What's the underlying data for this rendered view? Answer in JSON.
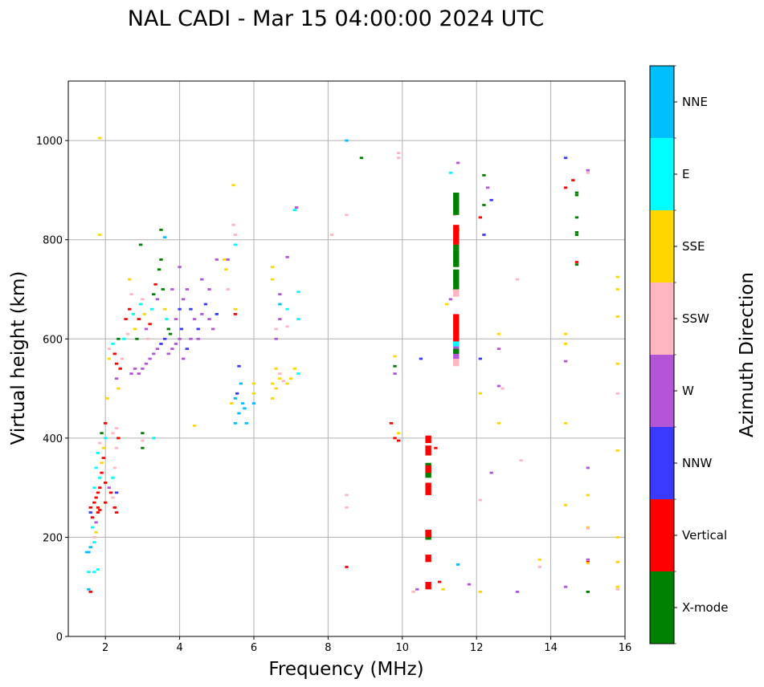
{
  "chart_data": {
    "type": "scatter",
    "title": "NAL CADI - Mar 15 04:00:00 2024 UTC",
    "xlabel": "Frequency (MHz)",
    "ylabel": "Virtual height (km)",
    "xlim": [
      1,
      16
    ],
    "ylim": [
      0,
      1120
    ],
    "xticks": [
      2,
      4,
      6,
      8,
      10,
      12,
      14,
      16
    ],
    "yticks": [
      0,
      200,
      400,
      600,
      800,
      1000
    ],
    "grid": true,
    "colorbar": {
      "label": "Azimuth Direction",
      "categories": [
        {
          "name": "X-mode",
          "color": "#008000"
        },
        {
          "name": "Vertical",
          "color": "#ff0000"
        },
        {
          "name": "NNW",
          "color": "#3a3aff"
        },
        {
          "name": "W",
          "color": "#b455d8"
        },
        {
          "name": "SSW",
          "color": "#ffb6c1"
        },
        {
          "name": "SSE",
          "color": "#ffd700"
        },
        {
          "name": "E",
          "color": "#00ffff"
        },
        {
          "name": "NNE",
          "color": "#00bfff"
        }
      ]
    },
    "points": [
      [
        1.85,
        1005,
        5
      ],
      [
        1.85,
        810,
        5
      ],
      [
        1.5,
        170,
        7
      ],
      [
        1.55,
        170,
        7
      ],
      [
        1.6,
        180,
        7
      ],
      [
        1.55,
        130,
        6
      ],
      [
        1.7,
        130,
        6
      ],
      [
        1.8,
        135,
        6
      ],
      [
        1.55,
        95,
        7
      ],
      [
        1.6,
        90,
        1
      ],
      [
        1.6,
        260,
        1
      ],
      [
        1.6,
        250,
        2
      ],
      [
        1.65,
        240,
        1
      ],
      [
        1.7,
        270,
        1
      ],
      [
        1.65,
        220,
        6
      ],
      [
        1.7,
        200,
        4
      ],
      [
        1.75,
        210,
        5
      ],
      [
        1.75,
        280,
        1
      ],
      [
        1.8,
        290,
        1
      ],
      [
        1.8,
        260,
        1
      ],
      [
        1.85,
        300,
        1
      ],
      [
        1.85,
        320,
        6
      ],
      [
        1.9,
        330,
        1
      ],
      [
        1.9,
        350,
        5
      ],
      [
        1.95,
        360,
        1
      ],
      [
        1.95,
        380,
        5
      ],
      [
        2.0,
        400,
        6
      ],
      [
        2.0,
        430,
        1
      ],
      [
        1.9,
        410,
        0
      ],
      [
        2.0,
        310,
        1
      ],
      [
        2.0,
        270,
        1
      ],
      [
        1.85,
        255,
        1
      ],
      [
        1.8,
        250,
        1
      ],
      [
        1.75,
        230,
        3
      ],
      [
        1.7,
        190,
        6
      ],
      [
        1.7,
        300,
        6
      ],
      [
        1.75,
        340,
        6
      ],
      [
        1.8,
        370,
        6
      ],
      [
        1.85,
        390,
        4
      ],
      [
        2.05,
        480,
        5
      ],
      [
        2.1,
        300,
        3
      ],
      [
        2.15,
        290,
        1
      ],
      [
        2.2,
        280,
        4
      ],
      [
        2.25,
        260,
        1
      ],
      [
        2.3,
        250,
        1
      ],
      [
        2.3,
        290,
        2
      ],
      [
        2.2,
        320,
        6
      ],
      [
        2.25,
        340,
        4
      ],
      [
        2.3,
        380,
        4
      ],
      [
        2.35,
        400,
        1
      ],
      [
        2.2,
        410,
        4
      ],
      [
        2.3,
        420,
        4
      ],
      [
        2.1,
        560,
        5
      ],
      [
        2.1,
        580,
        4
      ],
      [
        2.2,
        590,
        6
      ],
      [
        2.25,
        570,
        1
      ],
      [
        2.3,
        550,
        1
      ],
      [
        2.35,
        600,
        0
      ],
      [
        2.3,
        520,
        3
      ],
      [
        2.35,
        500,
        5
      ],
      [
        2.4,
        540,
        1
      ],
      [
        2.45,
        560,
        4
      ],
      [
        2.5,
        600,
        6
      ],
      [
        2.55,
        640,
        1
      ],
      [
        2.6,
        610,
        4
      ],
      [
        2.65,
        660,
        1
      ],
      [
        2.7,
        690,
        4
      ],
      [
        2.75,
        650,
        6
      ],
      [
        2.8,
        620,
        5
      ],
      [
        2.85,
        600,
        0
      ],
      [
        2.9,
        640,
        1
      ],
      [
        2.95,
        670,
        6
      ],
      [
        3.0,
        680,
        4
      ],
      [
        3.05,
        650,
        5
      ],
      [
        3.1,
        620,
        3
      ],
      [
        3.15,
        600,
        4
      ],
      [
        3.2,
        630,
        1
      ],
      [
        3.25,
        660,
        6
      ],
      [
        3.3,
        690,
        0
      ],
      [
        3.35,
        710,
        1
      ],
      [
        3.4,
        680,
        3
      ],
      [
        3.45,
        740,
        0
      ],
      [
        3.5,
        760,
        0
      ],
      [
        3.5,
        820,
        0
      ],
      [
        3.6,
        805,
        7
      ],
      [
        3.55,
        700,
        0
      ],
      [
        3.6,
        660,
        5
      ],
      [
        3.65,
        640,
        6
      ],
      [
        3.7,
        620,
        0
      ],
      [
        3.75,
        610,
        0
      ],
      [
        2.7,
        530,
        3
      ],
      [
        2.8,
        540,
        3
      ],
      [
        2.9,
        530,
        3
      ],
      [
        3.0,
        540,
        3
      ],
      [
        3.1,
        550,
        3
      ],
      [
        3.2,
        560,
        3
      ],
      [
        3.3,
        570,
        3
      ],
      [
        3.4,
        580,
        3
      ],
      [
        3.5,
        590,
        2
      ],
      [
        3.6,
        600,
        2
      ],
      [
        3.7,
        570,
        3
      ],
      [
        3.8,
        580,
        3
      ],
      [
        3.9,
        590,
        3
      ],
      [
        4.0,
        600,
        3
      ],
      [
        4.05,
        620,
        2
      ],
      [
        3.9,
        640,
        3
      ],
      [
        4.0,
        660,
        2
      ],
      [
        4.1,
        680,
        3
      ],
      [
        4.2,
        700,
        3
      ],
      [
        4.3,
        660,
        2
      ],
      [
        4.4,
        640,
        3
      ],
      [
        4.5,
        620,
        2
      ],
      [
        4.6,
        650,
        3
      ],
      [
        4.7,
        670,
        2
      ],
      [
        4.8,
        640,
        3
      ],
      [
        4.9,
        620,
        3
      ],
      [
        5.0,
        650,
        2
      ],
      [
        4.1,
        560,
        3
      ],
      [
        4.2,
        580,
        2
      ],
      [
        4.3,
        600,
        3
      ],
      [
        4.0,
        745,
        3
      ],
      [
        4.6,
        720,
        3
      ],
      [
        4.8,
        700,
        3
      ],
      [
        5.0,
        760,
        3
      ],
      [
        5.2,
        760,
        5
      ],
      [
        5.25,
        740,
        5
      ],
      [
        5.3,
        700,
        4
      ],
      [
        5.3,
        760,
        3
      ],
      [
        5.5,
        790,
        6
      ],
      [
        5.45,
        910,
        5
      ],
      [
        5.45,
        830,
        4
      ],
      [
        5.5,
        810,
        4
      ],
      [
        5.5,
        650,
        1
      ],
      [
        5.5,
        660,
        5
      ],
      [
        3.8,
        700,
        3
      ],
      [
        4.5,
        600,
        3
      ],
      [
        4.4,
        425,
        5
      ],
      [
        3.0,
        380,
        0
      ],
      [
        3.0,
        410,
        0
      ],
      [
        3.3,
        400,
        6
      ],
      [
        3.0,
        395,
        4
      ],
      [
        2.95,
        790,
        0
      ],
      [
        2.65,
        720,
        5
      ],
      [
        5.5,
        430,
        7
      ],
      [
        5.6,
        450,
        7
      ],
      [
        5.7,
        470,
        7
      ],
      [
        5.55,
        490,
        2
      ],
      [
        5.65,
        510,
        7
      ],
      [
        5.75,
        460,
        7
      ],
      [
        5.6,
        545,
        2
      ],
      [
        5.4,
        470,
        5
      ],
      [
        5.5,
        480,
        7
      ],
      [
        5.8,
        430,
        7
      ],
      [
        6.0,
        470,
        7
      ],
      [
        6.0,
        490,
        5
      ],
      [
        6.0,
        510,
        5
      ],
      [
        6.5,
        510,
        5
      ],
      [
        6.6,
        500,
        5
      ],
      [
        6.7,
        520,
        5
      ],
      [
        6.8,
        515,
        4
      ],
      [
        6.9,
        510,
        5
      ],
      [
        6.6,
        540,
        5
      ],
      [
        6.7,
        530,
        4
      ],
      [
        7.1,
        540,
        5
      ],
      [
        7.2,
        530,
        6
      ],
      [
        7.0,
        520,
        5
      ],
      [
        6.5,
        480,
        5
      ],
      [
        6.6,
        620,
        4
      ],
      [
        6.7,
        640,
        3
      ],
      [
        6.9,
        625,
        4
      ],
      [
        6.7,
        690,
        3
      ],
      [
        6.7,
        670,
        7
      ],
      [
        6.5,
        720,
        5
      ],
      [
        6.5,
        745,
        5
      ],
      [
        6.9,
        765,
        3
      ],
      [
        7.2,
        695,
        6
      ],
      [
        7.2,
        640,
        6
      ],
      [
        6.9,
        660,
        6
      ],
      [
        6.6,
        600,
        3
      ],
      [
        7.1,
        860,
        6
      ],
      [
        7.15,
        865,
        3
      ],
      [
        8.5,
        1000,
        7
      ],
      [
        8.9,
        965,
        0
      ],
      [
        8.5,
        850,
        4
      ],
      [
        8.1,
        810,
        4
      ],
      [
        9.9,
        975,
        4
      ],
      [
        9.9,
        965,
        4
      ],
      [
        9.8,
        565,
        5
      ],
      [
        9.8,
        545,
        0
      ],
      [
        9.8,
        530,
        3
      ],
      [
        9.7,
        430,
        1
      ],
      [
        9.9,
        410,
        5
      ],
      [
        9.8,
        400,
        1
      ],
      [
        9.9,
        395,
        1
      ],
      [
        10.5,
        560,
        2
      ],
      [
        10.9,
        380,
        1
      ],
      [
        11.3,
        935,
        6
      ],
      [
        11.5,
        955,
        3
      ],
      [
        11.5,
        820,
        5
      ],
      [
        11.4,
        850,
        4
      ],
      [
        11.3,
        680,
        3
      ],
      [
        11.2,
        670,
        5
      ],
      [
        11.4,
        700,
        4
      ],
      [
        11.0,
        110,
        1
      ],
      [
        10.4,
        95,
        3
      ],
      [
        10.3,
        90,
        4
      ],
      [
        11.1,
        95,
        5
      ],
      [
        11.5,
        145,
        7
      ],
      [
        11.8,
        105,
        3
      ],
      [
        12.1,
        560,
        2
      ],
      [
        12.1,
        490,
        5
      ],
      [
        12.3,
        905,
        3
      ],
      [
        12.4,
        880,
        2
      ],
      [
        12.2,
        930,
        0
      ],
      [
        12.2,
        870,
        0
      ],
      [
        12.1,
        845,
        1
      ],
      [
        12.2,
        810,
        2
      ],
      [
        12.6,
        610,
        5
      ],
      [
        12.6,
        580,
        3
      ],
      [
        12.6,
        505,
        3
      ],
      [
        12.7,
        500,
        4
      ],
      [
        12.6,
        430,
        5
      ],
      [
        12.4,
        330,
        3
      ],
      [
        12.1,
        275,
        4
      ],
      [
        12.1,
        90,
        5
      ],
      [
        13.1,
        720,
        4
      ],
      [
        13.2,
        355,
        4
      ],
      [
        13.1,
        90,
        3
      ],
      [
        13.7,
        155,
        5
      ],
      [
        13.7,
        140,
        4
      ],
      [
        14.4,
        965,
        2
      ],
      [
        14.4,
        905,
        1
      ],
      [
        14.6,
        920,
        1
      ],
      [
        14.7,
        895,
        0
      ],
      [
        14.7,
        890,
        0
      ],
      [
        14.7,
        845,
        0
      ],
      [
        14.7,
        815,
        0
      ],
      [
        14.7,
        810,
        0
      ],
      [
        14.7,
        755,
        1
      ],
      [
        14.7,
        750,
        0
      ],
      [
        14.4,
        610,
        5
      ],
      [
        14.4,
        590,
        5
      ],
      [
        14.4,
        555,
        3
      ],
      [
        14.4,
        430,
        5
      ],
      [
        14.4,
        265,
        5
      ],
      [
        14.4,
        100,
        3
      ],
      [
        15.0,
        940,
        3
      ],
      [
        15.0,
        935,
        4
      ],
      [
        15.0,
        340,
        3
      ],
      [
        15.0,
        285,
        5
      ],
      [
        15.0,
        220,
        5
      ],
      [
        15.0,
        218,
        4
      ],
      [
        15.0,
        155,
        3
      ],
      [
        15.0,
        150,
        1
      ],
      [
        15.0,
        148,
        5
      ],
      [
        15.0,
        90,
        0
      ],
      [
        15.8,
        725,
        5
      ],
      [
        15.8,
        700,
        5
      ],
      [
        15.8,
        645,
        5
      ],
      [
        15.8,
        550,
        5
      ],
      [
        15.8,
        490,
        4
      ],
      [
        15.8,
        375,
        5
      ],
      [
        15.8,
        200,
        5
      ],
      [
        15.8,
        150,
        5
      ],
      [
        15.8,
        100,
        5
      ],
      [
        15.8,
        95,
        4
      ],
      [
        8.5,
        285,
        4
      ],
      [
        8.5,
        260,
        4
      ],
      [
        8.5,
        140,
        1
      ]
    ],
    "vertical_bars": [
      {
        "x": 10.7,
        "y0": 95,
        "y1": 405,
        "segments": [
          [
            95,
            110,
            1
          ],
          [
            150,
            165,
            1
          ],
          [
            195,
            215,
            0
          ],
          [
            200,
            215,
            1
          ],
          [
            285,
            310,
            1
          ],
          [
            320,
            350,
            0
          ],
          [
            330,
            345,
            1
          ],
          [
            365,
            385,
            1
          ],
          [
            390,
            405,
            1
          ]
        ]
      },
      {
        "x": 11.45,
        "y0": 545,
        "y1": 895,
        "segments": [
          [
            545,
            560,
            4
          ],
          [
            560,
            600,
            3
          ],
          [
            570,
            580,
            0
          ],
          [
            585,
            595,
            6
          ],
          [
            595,
            650,
            1
          ],
          [
            685,
            700,
            4
          ],
          [
            700,
            740,
            0
          ],
          [
            745,
            780,
            0
          ],
          [
            780,
            790,
            0
          ],
          [
            790,
            830,
            1
          ],
          [
            850,
            895,
            0
          ]
        ]
      }
    ]
  }
}
